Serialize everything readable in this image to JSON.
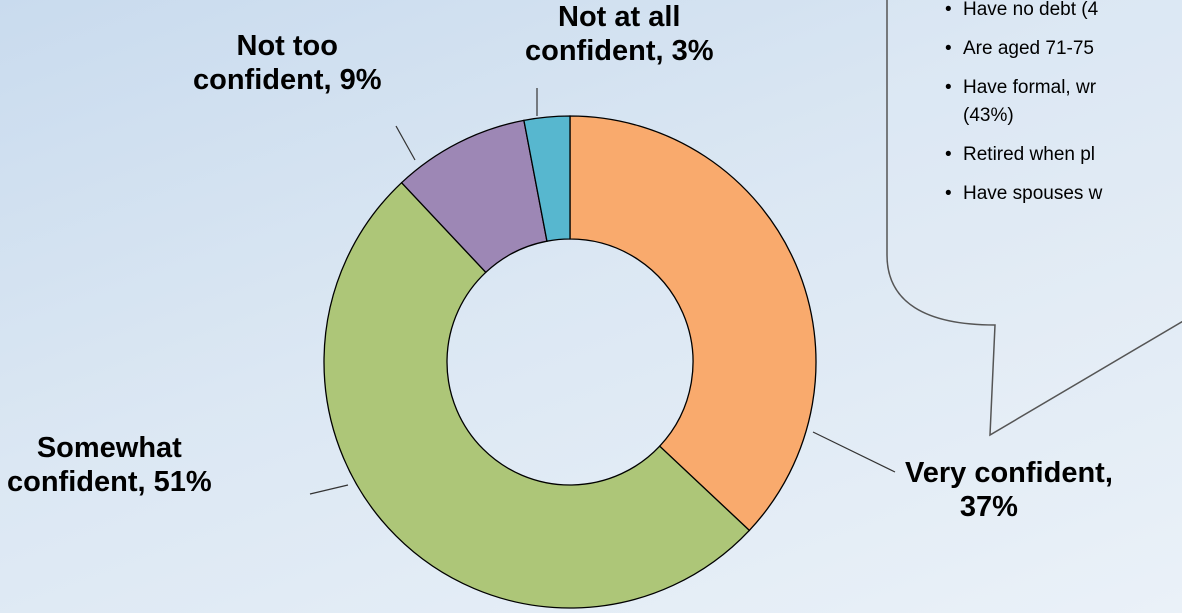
{
  "chart_data": {
    "type": "pie",
    "variant": "donut",
    "categories": [
      "Very confident",
      "Somewhat confident",
      "Not too confident",
      "Not at all confident"
    ],
    "values": [
      37,
      51,
      9,
      3
    ],
    "unit": "%",
    "colors": [
      "#f9aa6d",
      "#adc678",
      "#9d87b5",
      "#57b7cf"
    ],
    "start_angle_deg": 0,
    "direction": "clockwise",
    "labels": [
      {
        "line1": "Very confident,",
        "line2": "37%"
      },
      {
        "line1": "Somewhat",
        "line2": "confident, 51%"
      },
      {
        "line1": "Not too",
        "line2": "confident, 9%"
      },
      {
        "line1": "Not at all",
        "line2": "confident, 3%"
      }
    ]
  },
  "callout": {
    "items": [
      {
        "text": "Have no debt (4",
        "cont": ""
      },
      {
        "text": "Are aged 71-75",
        "cont": ""
      },
      {
        "text": "Have formal, wr",
        "cont": "(43%)"
      },
      {
        "text": "Retired when pl",
        "cont": ""
      },
      {
        "text": "Have spouses w",
        "cont": ""
      }
    ]
  }
}
